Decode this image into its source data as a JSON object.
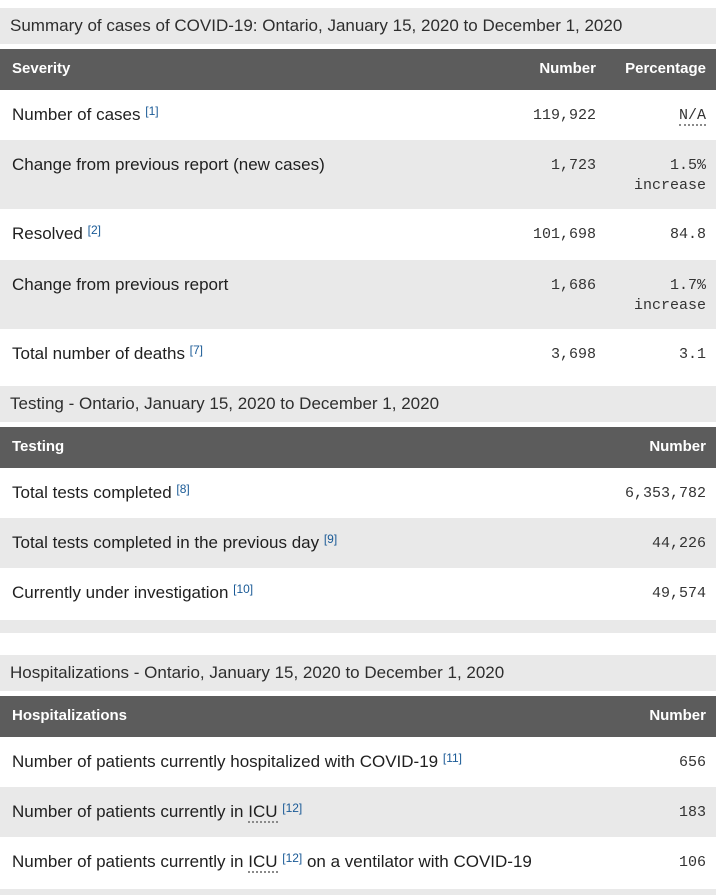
{
  "theme": {
    "heading_bg": "#e9e9e9",
    "table_header_bg": "#5c5c5c",
    "table_header_text": "#ffffff",
    "stripe_bg": "#e9e9e9",
    "link_color": "#1a5a96",
    "text_color": "#1f1f1f"
  },
  "sections": [
    {
      "heading": "Summary of cases of COVID-19: Ontario, January 15, 2020 to December 1, 2020",
      "columns": {
        "label": "Severity",
        "number": "Number",
        "percentage": "Percentage"
      },
      "rows": [
        {
          "label_parts": [
            {
              "t": "text",
              "v": "Number of cases "
            },
            {
              "t": "footnote",
              "v": "[1]"
            }
          ],
          "number": "119,922",
          "pct_parts": [
            {
              "t": "abbr",
              "v": "N/A"
            }
          ]
        },
        {
          "label_parts": [
            {
              "t": "text",
              "v": "Change from previous report (new cases)"
            }
          ],
          "number": "1,723",
          "pct_parts": [
            {
              "t": "text",
              "v": "1.5% increase"
            }
          ]
        },
        {
          "label_parts": [
            {
              "t": "text",
              "v": "Resolved "
            },
            {
              "t": "footnote",
              "v": "[2]"
            }
          ],
          "number": "101,698",
          "pct_parts": [
            {
              "t": "text",
              "v": "84.8"
            }
          ]
        },
        {
          "label_parts": [
            {
              "t": "text",
              "v": "Change from previous report"
            }
          ],
          "number": "1,686",
          "pct_parts": [
            {
              "t": "text",
              "v": "1.7% increase"
            }
          ]
        },
        {
          "label_parts": [
            {
              "t": "text",
              "v": "Total number of deaths "
            },
            {
              "t": "footnote",
              "v": "[7]"
            }
          ],
          "number": "3,698",
          "pct_parts": [
            {
              "t": "text",
              "v": "3.1"
            }
          ]
        }
      ],
      "trailing_strip": ""
    },
    {
      "heading": "Testing - Ontario, January 15, 2020 to December 1, 2020",
      "columns": {
        "label": "Testing",
        "number": "Number"
      },
      "rows": [
        {
          "label_parts": [
            {
              "t": "text",
              "v": "Total tests completed "
            },
            {
              "t": "footnote",
              "v": "[8]"
            }
          ],
          "number": "6,353,782"
        },
        {
          "label_parts": [
            {
              "t": "text",
              "v": "Total tests completed in the previous day "
            },
            {
              "t": "footnote",
              "v": "[9]"
            }
          ],
          "number": "44,226"
        },
        {
          "label_parts": [
            {
              "t": "text",
              "v": "Currently under investigation "
            },
            {
              "t": "footnote",
              "v": "[10]"
            }
          ],
          "number": "49,574"
        }
      ],
      "trailing_strip": "mid"
    },
    {
      "heading": "Hospitalizations - Ontario, January 15, 2020 to December 1, 2020",
      "columns": {
        "label": "Hospitalizations",
        "number": "Number"
      },
      "rows": [
        {
          "label_parts": [
            {
              "t": "text",
              "v": "Number of patients currently hospitalized with COVID-19 "
            },
            {
              "t": "footnote",
              "v": "[11]"
            }
          ],
          "number": "656"
        },
        {
          "label_parts": [
            {
              "t": "text",
              "v": "Number of patients currently in "
            },
            {
              "t": "abbr",
              "v": "ICU"
            },
            {
              "t": "text",
              "v": " "
            },
            {
              "t": "footnote",
              "v": "[12]"
            }
          ],
          "number": "183"
        },
        {
          "label_parts": [
            {
              "t": "text",
              "v": "Number of patients currently in "
            },
            {
              "t": "abbr",
              "v": "ICU"
            },
            {
              "t": "text",
              "v": " "
            },
            {
              "t": "footnote",
              "v": "[12]"
            },
            {
              "t": "text",
              "v": " on a ventilator with COVID-19"
            }
          ],
          "number": "106"
        }
      ],
      "trailing_strip": "end"
    }
  ]
}
